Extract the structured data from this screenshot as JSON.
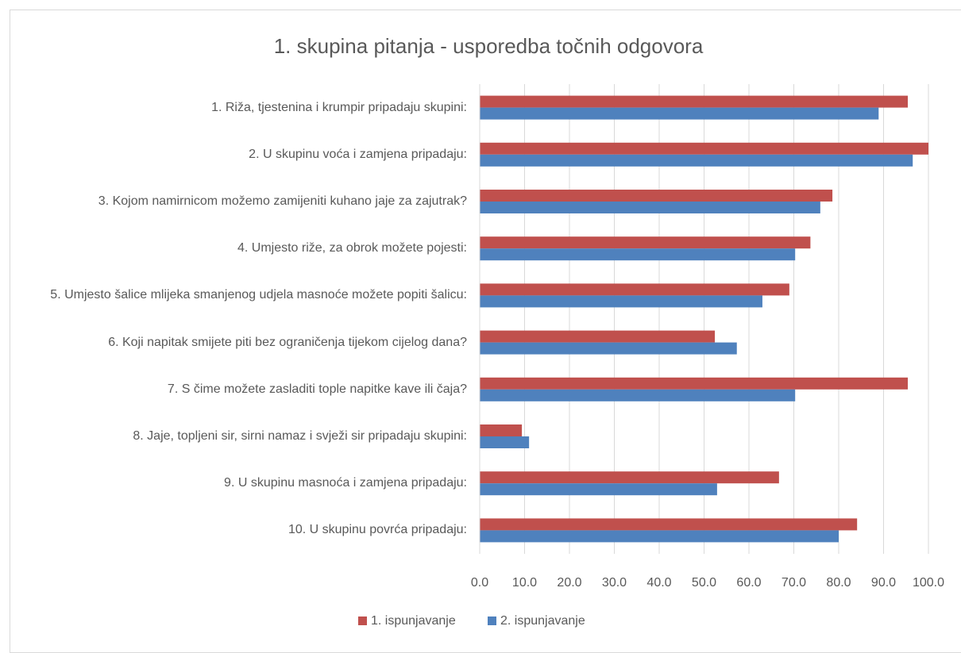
{
  "chart_data": {
    "type": "bar",
    "orientation": "horizontal",
    "title": "1. skupina pitanja - usporedba točnih odgovora",
    "categories": [
      "1. Riža, tjestenina i krumpir pripadaju skupini:",
      "2. U skupinu voća i zamjena pripadaju:",
      "3. Kojom namirnicom možemo zamijeniti kuhano jaje za zajutrak?",
      "4. Umjesto riže, za obrok možete pojesti:",
      "5. Umjesto šalice mlijeka smanjenog udjela masnoće možete popiti šalicu:",
      "6. Koji napitak smijete piti bez ograničenja tijekom cijelog dana?",
      "7. S čime možete zasladiti tople napitke kave ili čaja?",
      "8. Jaje, topljeni sir, sirni namaz i svježi sir pripadaju skupini:",
      "9. U skupinu masnoća i zamjena pripadaju:",
      "10. U skupinu povrća pripadaju:"
    ],
    "series": [
      {
        "name": "1. ispunjavanje",
        "color": "#c0504d",
        "values": [
          95.4,
          100,
          78.6,
          73.7,
          69.0,
          52.4,
          95.4,
          9.4,
          66.7,
          84.1
        ]
      },
      {
        "name": "2. ispunjavanje",
        "color": "#4f81bd",
        "values": [
          88.9,
          96.5,
          75.9,
          70.3,
          63.0,
          57.3,
          70.3,
          11.0,
          52.9,
          80.0
        ]
      }
    ],
    "xlim": [
      0,
      100
    ],
    "xticks": [
      {
        "value": 0,
        "label": "0.0"
      },
      {
        "value": 10,
        "label": "10.0"
      },
      {
        "value": 20,
        "label": "20.0"
      },
      {
        "value": 30,
        "label": "30.0"
      },
      {
        "value": 40,
        "label": "40.0"
      },
      {
        "value": 50,
        "label": "50.0"
      },
      {
        "value": 60,
        "label": "60.0"
      },
      {
        "value": 70,
        "label": "70.0"
      },
      {
        "value": 80,
        "label": "80.0"
      },
      {
        "value": 90,
        "label": "90.0"
      },
      {
        "value": 100,
        "label": "100.0"
      }
    ],
    "grid": true,
    "legend": "bottom"
  }
}
